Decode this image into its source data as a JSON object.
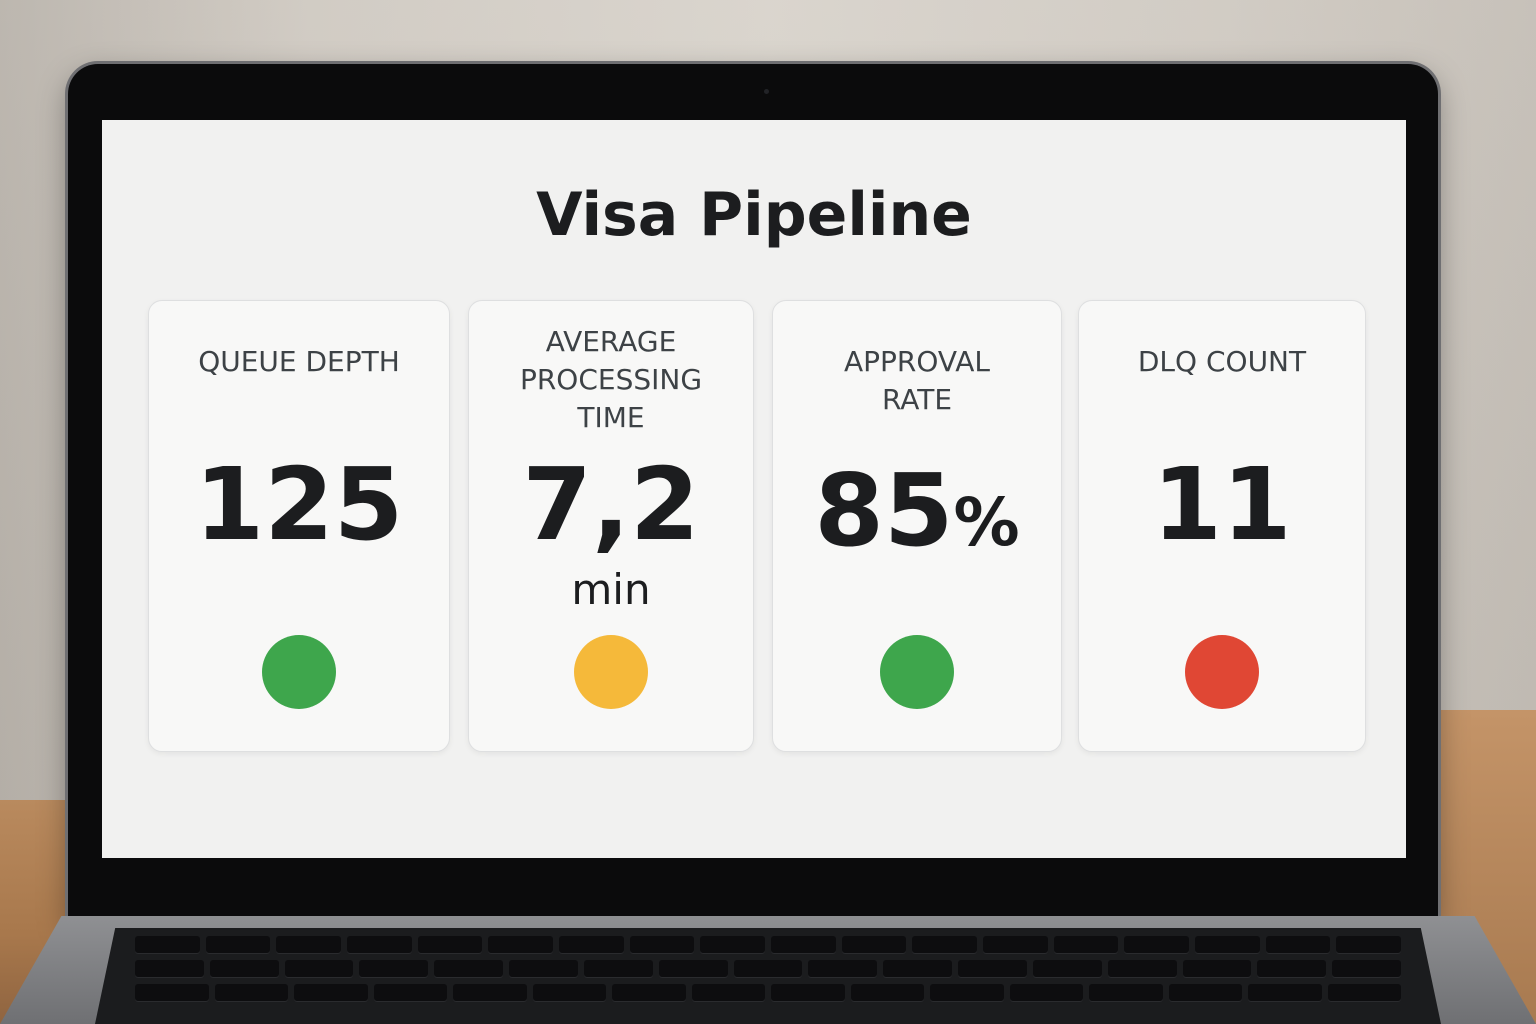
{
  "dashboard": {
    "title": "Visa Pipeline",
    "metrics": [
      {
        "label": "QUEUE DEPTH",
        "value": "125",
        "unit": "",
        "status": "good",
        "status_color": "#3ea64c"
      },
      {
        "label": "AVERAGE\nPROCESSING\nTIME",
        "value": "7,2",
        "unit": "min",
        "status": "warning",
        "status_color": "#f5b93a"
      },
      {
        "label": "APPROVAL\nRATE",
        "value": "85",
        "unit": "%",
        "status": "good",
        "status_color": "#3ea64c"
      },
      {
        "label": "DLQ COUNT",
        "value": "11",
        "unit": "",
        "status": "critical",
        "status_color": "#e04734"
      }
    ]
  }
}
